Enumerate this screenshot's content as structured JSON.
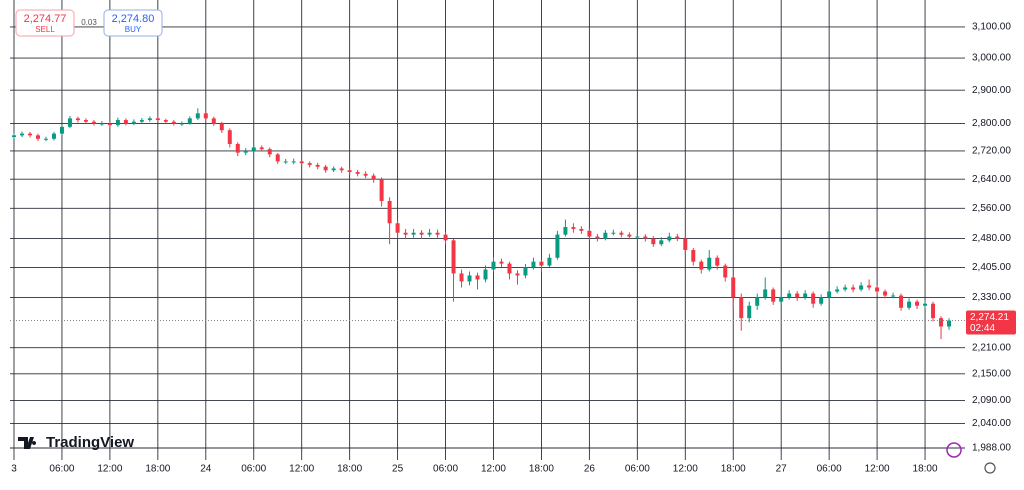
{
  "chart_data": {
    "type": "candlestick",
    "log_scale": true,
    "grid": true,
    "up_color": "#089981",
    "down_color": "#f23645",
    "trade_panel": {
      "sell_price": "2,274.77",
      "sell_label": "SELL",
      "spread": "0.03",
      "buy_price": "2,274.80",
      "buy_label": "BUY"
    },
    "watermark": "TradingView",
    "last_price": {
      "value": 2274.21,
      "label": "2,274.21"
    },
    "countdown": "02:44",
    "xlim": [
      -0.5,
      119
    ],
    "xticks": [
      {
        "value": 0,
        "label": "3"
      },
      {
        "value": 6,
        "label": "06:00"
      },
      {
        "value": 12,
        "label": "12:00"
      },
      {
        "value": 18,
        "label": "18:00"
      },
      24,
      {
        "value": 30,
        "label": "06:00"
      },
      {
        "value": 36,
        "label": "12:00"
      },
      {
        "value": 42,
        "label": "18:00"
      },
      {
        "value": 48,
        "label": "25"
      },
      {
        "value": 54,
        "label": "06:00"
      },
      {
        "value": 60,
        "label": "12:00"
      },
      {
        "value": 66,
        "label": "18:00"
      },
      {
        "value": 72,
        "label": "26"
      },
      {
        "value": 78,
        "label": "06:00"
      },
      {
        "value": 84,
        "label": "12:00"
      },
      {
        "value": 90,
        "label": "18:00"
      },
      {
        "value": 96,
        "label": "27"
      },
      {
        "value": 102,
        "label": "06:00"
      },
      {
        "value": 108,
        "label": "12:00"
      },
      {
        "value": 114,
        "label": "18:00"
      }
    ],
    "ylim": [
      1963,
      3156
    ],
    "yticks": [
      {
        "value": 3100,
        "label": "3,100.00"
      },
      {
        "value": 3000,
        "label": "3,000.00"
      },
      {
        "value": 2900,
        "label": "2,900.00"
      },
      {
        "value": 2800,
        "label": "2,800.00"
      },
      {
        "value": 2720,
        "label": "2,720.00"
      },
      {
        "value": 2640,
        "label": "2,640.00"
      },
      {
        "value": 2560,
        "label": "2,560.00"
      },
      {
        "value": 2480,
        "label": "2,480.00"
      },
      {
        "value": 2405,
        "label": "2,405.00"
      },
      {
        "value": 2330,
        "label": "2,330.00"
      },
      {
        "value": 2210,
        "label": "2,210.00"
      },
      {
        "value": 2150,
        "label": "2,150.00"
      },
      {
        "value": 2090,
        "label": "2,090.00"
      },
      {
        "value": 2040,
        "label": "2,040.00"
      },
      {
        "value": 1988,
        "label": "1,988.00"
      }
    ],
    "x": [
      0,
      1,
      2,
      3,
      4,
      5,
      6,
      7,
      8,
      9,
      10,
      11,
      12,
      13,
      14,
      15,
      16,
      17,
      18,
      19,
      20,
      21,
      22,
      23,
      24,
      25,
      26,
      27,
      28,
      29,
      30,
      31,
      32,
      33,
      34,
      35,
      36,
      37,
      38,
      39,
      40,
      41,
      42,
      43,
      44,
      45,
      46,
      47,
      48,
      49,
      50,
      51,
      52,
      53,
      54,
      55,
      56,
      57,
      58,
      59,
      60,
      61,
      62,
      63,
      64,
      65,
      66,
      67,
      68,
      69,
      70,
      71,
      72,
      73,
      74,
      75,
      76,
      77,
      78,
      79,
      80,
      81,
      82,
      83,
      84,
      85,
      86,
      87,
      88,
      89,
      90,
      91,
      92,
      93,
      94,
      95,
      96,
      97,
      98,
      99,
      100,
      101,
      102,
      103,
      104,
      105,
      106,
      107,
      108,
      109,
      110,
      111,
      112,
      113,
      114,
      115,
      116,
      117
    ],
    "open": [
      2760,
      2765,
      2770,
      2765,
      2755,
      2755,
      2770,
      2790,
      2815,
      2810,
      2805,
      2800,
      2800,
      2795,
      2810,
      2800,
      2805,
      2810,
      2815,
      2810,
      2805,
      2800,
      2800,
      2815,
      2830,
      2815,
      2800,
      2780,
      2740,
      2715,
      2720,
      2730,
      2725,
      2710,
      2690,
      2690,
      2690,
      2685,
      2680,
      2675,
      2665,
      2670,
      2665,
      2660,
      2655,
      2650,
      2640,
      2580,
      2520,
      2495,
      2490,
      2495,
      2490,
      2495,
      2490,
      2475,
      2390,
      2370,
      2385,
      2375,
      2400,
      2420,
      2415,
      2390,
      2385,
      2405,
      2420,
      2410,
      2430,
      2490,
      2510,
      2505,
      2500,
      2485,
      2480,
      2495,
      2495,
      2490,
      2485,
      2485,
      2480,
      2465,
      2475,
      2485,
      2480,
      2450,
      2420,
      2400,
      2430,
      2410,
      2380,
      2330,
      2280,
      2310,
      2330,
      2350,
      2320,
      2330,
      2340,
      2330,
      2340,
      2315,
      2330,
      2345,
      2350,
      2355,
      2350,
      2360,
      2355,
      2345,
      2335,
      2335,
      2305,
      2320,
      2310,
      2315,
      2280,
      2260
    ],
    "high": [
      2772,
      2776,
      2775,
      2770,
      2761,
      2775,
      2795,
      2822,
      2820,
      2815,
      2810,
      2807,
      2806,
      2817,
      2815,
      2812,
      2816,
      2821,
      2820,
      2814,
      2810,
      2806,
      2821,
      2845,
      2836,
      2820,
      2805,
      2785,
      2745,
      2728,
      2738,
      2736,
      2730,
      2714,
      2697,
      2698,
      2696,
      2690,
      2686,
      2680,
      2676,
      2675,
      2671,
      2666,
      2662,
      2656,
      2645,
      2590,
      2528,
      2505,
      2505,
      2502,
      2505,
      2503,
      2498,
      2480,
      2400,
      2395,
      2392,
      2410,
      2432,
      2428,
      2420,
      2398,
      2414,
      2430,
      2425,
      2440,
      2500,
      2530,
      2520,
      2512,
      2506,
      2492,
      2502,
      2503,
      2500,
      2496,
      2492,
      2491,
      2486,
      2483,
      2495,
      2492,
      2486,
      2455,
      2425,
      2450,
      2436,
      2415,
      2385,
      2340,
      2320,
      2340,
      2380,
      2355,
      2338,
      2348,
      2346,
      2348,
      2345,
      2338,
      2352,
      2358,
      2362,
      2362,
      2368,
      2375,
      2360,
      2350,
      2342,
      2340,
      2328,
      2325,
      2322,
      2320,
      2285,
      2280
    ],
    "low": [
      2754,
      2760,
      2759,
      2749,
      2748,
      2750,
      2765,
      2786,
      2803,
      2799,
      2794,
      2793,
      2787,
      2790,
      2794,
      2795,
      2800,
      2805,
      2804,
      2799,
      2794,
      2793,
      2796,
      2810,
      2808,
      2793,
      2772,
      2730,
      2705,
      2708,
      2714,
      2718,
      2702,
      2683,
      2683,
      2682,
      2679,
      2673,
      2668,
      2658,
      2660,
      2658,
      2654,
      2648,
      2643,
      2630,
      2565,
      2465,
      2480,
      2478,
      2482,
      2480,
      2484,
      2482,
      2465,
      2320,
      2355,
      2360,
      2350,
      2368,
      2395,
      2405,
      2375,
      2362,
      2378,
      2400,
      2395,
      2405,
      2425,
      2485,
      2495,
      2492,
      2475,
      2472,
      2475,
      2488,
      2483,
      2478,
      2477,
      2472,
      2458,
      2460,
      2470,
      2473,
      2440,
      2410,
      2390,
      2395,
      2400,
      2370,
      2300,
      2250,
      2270,
      2300,
      2325,
      2312,
      2313,
      2325,
      2322,
      2325,
      2305,
      2310,
      2325,
      2340,
      2345,
      2343,
      2345,
      2348,
      2338,
      2328,
      2328,
      2298,
      2300,
      2302,
      2304,
      2272,
      2230,
      2252
    ],
    "close": [
      2765,
      2770,
      2765,
      2755,
      2755,
      2770,
      2790,
      2815,
      2810,
      2805,
      2800,
      2800,
      2795,
      2810,
      2800,
      2805,
      2810,
      2815,
      2810,
      2805,
      2800,
      2800,
      2815,
      2830,
      2815,
      2800,
      2780,
      2740,
      2715,
      2720,
      2730,
      2725,
      2710,
      2690,
      2690,
      2690,
      2685,
      2680,
      2675,
      2665,
      2670,
      2665,
      2660,
      2655,
      2650,
      2640,
      2580,
      2520,
      2495,
      2490,
      2495,
      2490,
      2495,
      2490,
      2475,
      2390,
      2370,
      2385,
      2375,
      2400,
      2420,
      2415,
      2390,
      2385,
      2405,
      2420,
      2410,
      2430,
      2490,
      2510,
      2505,
      2500,
      2485,
      2480,
      2495,
      2495,
      2490,
      2485,
      2485,
      2480,
      2465,
      2475,
      2485,
      2480,
      2450,
      2420,
      2400,
      2430,
      2410,
      2380,
      2330,
      2280,
      2310,
      2330,
      2350,
      2320,
      2330,
      2340,
      2330,
      2340,
      2315,
      2330,
      2345,
      2350,
      2355,
      2350,
      2360,
      2355,
      2345,
      2335,
      2335,
      2305,
      2320,
      2310,
      2315,
      2280,
      2260,
      2274.21
    ]
  }
}
